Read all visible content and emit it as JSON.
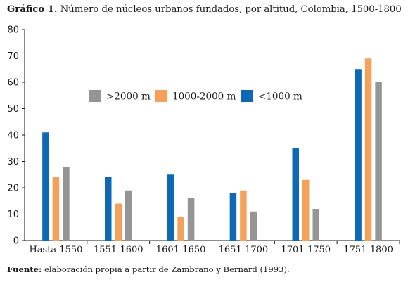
{
  "title": {
    "prefix": "Gráfico 1.",
    "text": "Número de núcleos urbanos fundados, por altitud, Colombia, 1500-1800"
  },
  "source": {
    "prefix": "Fuente:",
    "text": "elaboración propia a partir de Zambrano y Bernard (1993)."
  },
  "chart_data": {
    "type": "bar",
    "title": "Número de núcleos urbanos fundados, por altitud, Colombia, 1500-1800",
    "xlabel": "",
    "ylabel": "",
    "ylim": [
      0,
      80
    ],
    "yticks": [
      0,
      10,
      20,
      30,
      40,
      50,
      60,
      70,
      80
    ],
    "grid": false,
    "legend_position": "top-center",
    "categories": [
      "Hasta 1550",
      "1551-1600",
      "1601-1650",
      "1651-1700",
      "1701-1750",
      "1751-1800"
    ],
    "series": [
      {
        "name": "<1000 m",
        "color": "#0d68b5",
        "values": [
          41,
          24,
          25,
          18,
          35,
          65
        ]
      },
      {
        "name": "1000-2000 m",
        "color": "#f4a25b",
        "values": [
          24,
          14,
          9,
          19,
          23,
          69
        ]
      },
      {
        "name": ">2000 m",
        "color": "#959595",
        "values": [
          28,
          19,
          16,
          11,
          12,
          60
        ]
      }
    ],
    "legend_order": [
      ">2000 m",
      "1000-2000 m",
      "<1000 m"
    ]
  }
}
